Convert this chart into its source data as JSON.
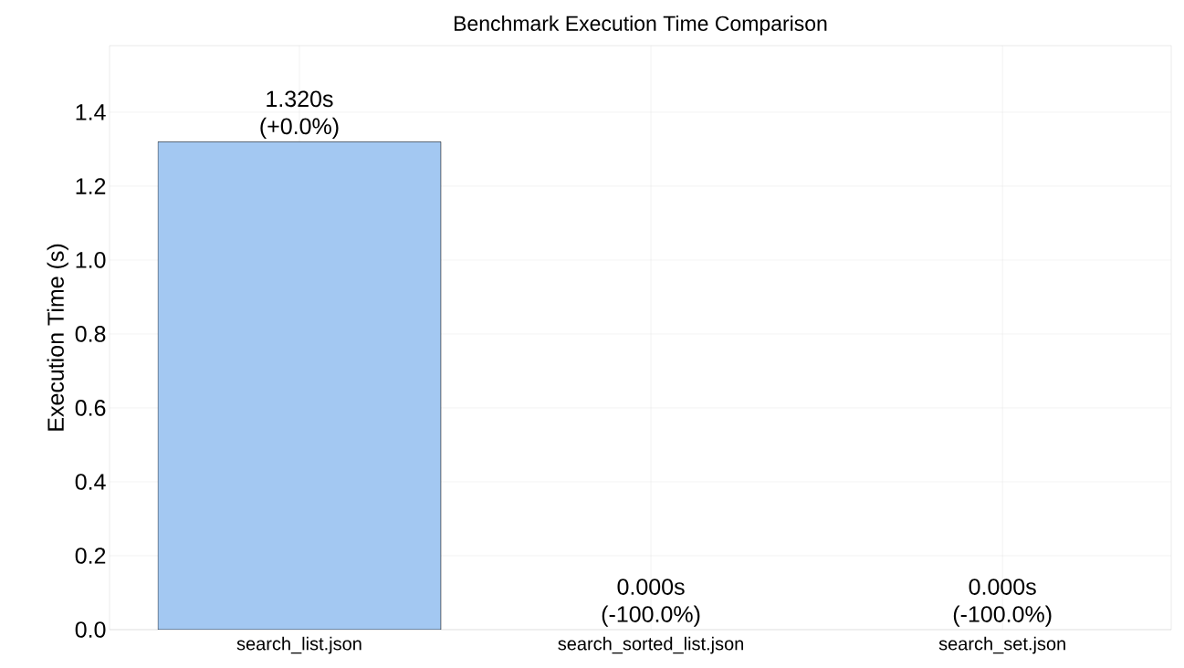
{
  "chart_data": {
    "type": "bar",
    "title": "Benchmark Execution Time Comparison",
    "ylabel": "Execution Time (s)",
    "categories": [
      "search_list.json",
      "search_sorted_list.json",
      "search_set.json"
    ],
    "values": [
      1.32,
      0,
      0
    ],
    "value_labels": [
      "1.320s (+0.0%)",
      "0.000s (-100.0%)",
      "0.000s (-100.0%)"
    ],
    "color": "#a3c8f2",
    "ylim": [
      0,
      1.58
    ],
    "yticks": [
      {
        "value": 0,
        "label": "0.0"
      },
      {
        "value": 0.2,
        "label": "0.2"
      },
      {
        "value": 0.4,
        "label": "0.4"
      },
      {
        "value": 0.6,
        "label": "0.6"
      },
      {
        "value": 0.8,
        "label": "0.8"
      },
      {
        "value": 1.0,
        "label": "1.0"
      },
      {
        "value": 1.2,
        "label": "1.2"
      },
      {
        "value": 1.4,
        "label": "1.4"
      }
    ],
    "grid": true
  }
}
